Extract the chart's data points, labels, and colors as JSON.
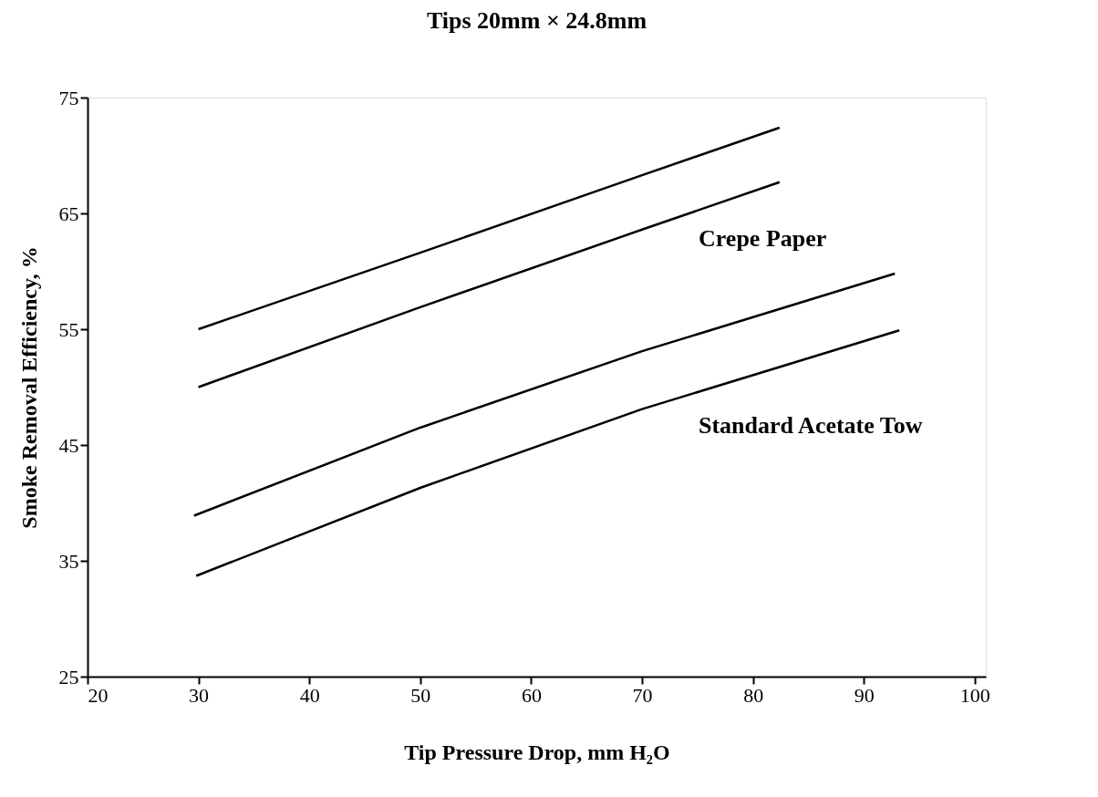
{
  "chart_data": {
    "type": "line",
    "title": "Tips 20mm × 24.8mm",
    "xlabel": "Tip Pressure Drop, mm H₂O",
    "ylabel": "Smoke Removal Efficiency, %",
    "series": [
      {
        "color": "#000000",
        "x": [
          30,
          50,
          70,
          82.4
        ],
        "values": [
          55,
          61.6,
          68.3,
          72.4
        ]
      },
      {
        "color": "#000000",
        "x": [
          30,
          50,
          70,
          82.4
        ],
        "values": [
          50,
          56.9,
          63.6,
          67.7
        ]
      },
      {
        "color": "#000000",
        "x": [
          29.6,
          50,
          70,
          92.8
        ],
        "values": [
          38.9,
          46.5,
          53.1,
          59.8
        ]
      },
      {
        "color": "#000000",
        "x": [
          29.8,
          50,
          70,
          93.2
        ],
        "values": [
          33.7,
          41.3,
          48.1,
          54.9
        ]
      }
    ],
    "annotations": [
      "Crepe Paper",
      "Standard   Acetate Tow"
    ],
    "xlim": [
      20,
      101
    ],
    "xticks": [
      20,
      30,
      40,
      50,
      60,
      70,
      80,
      90,
      100
    ],
    "ylim": [
      25,
      75
    ],
    "yticks": [
      25,
      35,
      45,
      55,
      65,
      75
    ],
    "grid": false,
    "legend": false,
    "marker": "none",
    "line_style": "solid"
  }
}
